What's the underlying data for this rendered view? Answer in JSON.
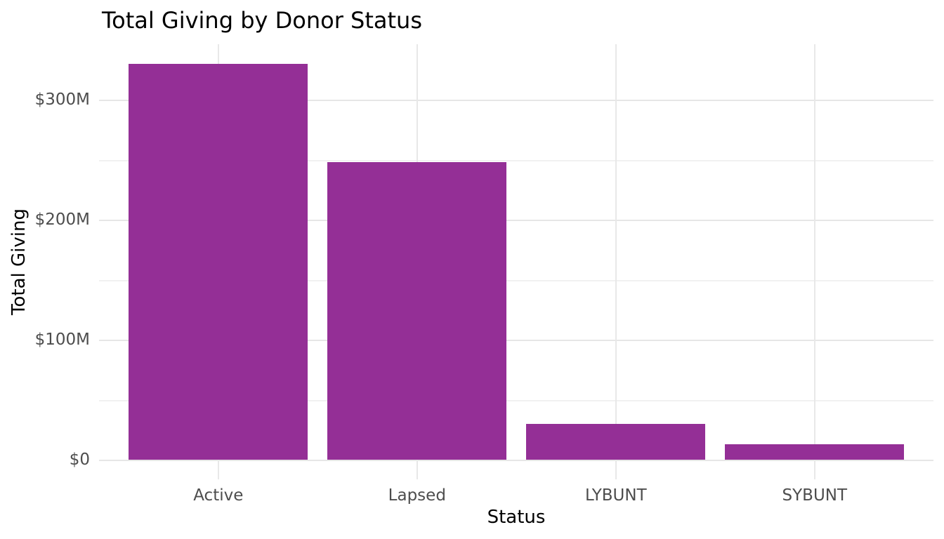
{
  "chart_data": {
    "type": "bar",
    "title": "Total Giving by Donor Status",
    "xlabel": "Status",
    "ylabel": "Total Giving",
    "categories": [
      "Active",
      "Lapsed",
      "LYBUNT",
      "SYBUNT"
    ],
    "values": [
      330,
      248,
      30,
      13
    ],
    "value_unit": "M ($ millions)",
    "y_major_ticks": [
      {
        "value": 0,
        "label": "$0"
      },
      {
        "value": 100,
        "label": "$100M"
      },
      {
        "value": 200,
        "label": "$200M"
      },
      {
        "value": 300,
        "label": "$300M"
      }
    ],
    "y_minor_ticks": [
      50,
      150,
      250
    ],
    "ylim": [
      -16.5,
      346.5
    ],
    "grid": "major-and-minor, light gray on white",
    "legend": "none",
    "colors": {
      "bar": "#942F96",
      "grid_major": "#e6e6e6",
      "grid_minor": "#f1f1f1",
      "tick_label": "#4d4d4d",
      "title": "#000000",
      "axis_title": "#000000",
      "background": "#ffffff"
    }
  }
}
